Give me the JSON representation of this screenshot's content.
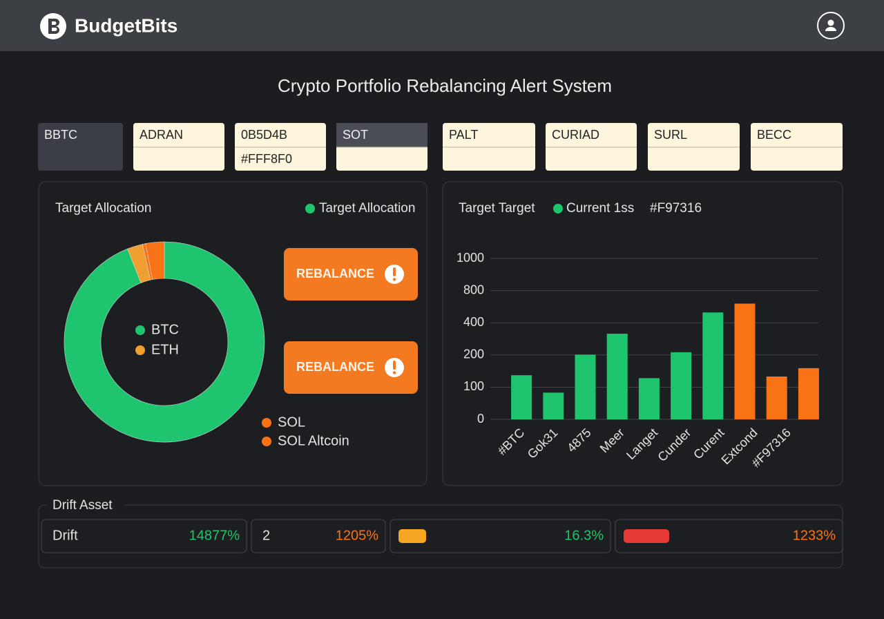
{
  "header": {
    "brand": "BudgetBits"
  },
  "title": "Crypto Portfolio Rebalancing Alert System",
  "cards": [
    {
      "label": "BBTC",
      "style": "dark"
    },
    {
      "label": "ADRAN",
      "style": "cream"
    },
    {
      "label": "0B5D4B",
      "value": "#FFF8F0",
      "style": "cream"
    },
    {
      "label": "SOT",
      "style": "split"
    },
    {
      "label": "PALT",
      "style": "cream"
    },
    {
      "label": "CURIAD",
      "style": "cream"
    },
    {
      "label": "SURL",
      "style": "cream"
    },
    {
      "label": "BECC",
      "style": "cream"
    }
  ],
  "allocation": {
    "title": "Target Allocation",
    "legend_label": "Target Allocation",
    "legend_color": "#1fc46e",
    "buttons": [
      "REBALANCE",
      "REBALANCE"
    ]
  },
  "bar_panel": {
    "legend": [
      "Target Target",
      "Current 1ss",
      "#F97316"
    ],
    "legend_color": "#1fc46e"
  },
  "chart_data": [
    {
      "type": "donut",
      "categories": [
        "BTC",
        "ETH",
        "SOL",
        "SOL Altcoin"
      ],
      "values": [
        94,
        2.5,
        0.5,
        3
      ],
      "colors": [
        "#1fc46e",
        "#f0a030",
        "#f97316",
        "#f97316"
      ]
    },
    {
      "type": "bar",
      "categories": [
        "#BTC",
        "Gok31",
        "4875",
        "Meer",
        "Langet",
        "Cunder",
        "Curent",
        "Extcond",
        "#F97316",
        null
      ],
      "values": [
        137,
        83,
        202,
        332,
        128,
        217,
        528,
        638,
        133,
        159
      ],
      "colors": [
        "#1fc46e",
        "#1fc46e",
        "#1fc46e",
        "#1fc46e",
        "#1fc46e",
        "#1fc46e",
        "#1fc46e",
        "#f97316",
        "#f97316",
        "#f97316"
      ],
      "ylim": [
        0,
        1000
      ],
      "yticks": [
        0,
        100,
        200,
        400,
        800,
        1000
      ],
      "grid": true
    }
  ],
  "drift": {
    "title": "Drift Asset",
    "cells": [
      {
        "label": "Drift",
        "value": "14877%",
        "color": "#22c46a"
      },
      {
        "label": "2",
        "value": "1205%",
        "color": "#f97316"
      },
      {
        "pill": "#f5a623",
        "value": "16.3%",
        "color": "#22c46a"
      },
      {
        "pill": "#e53935",
        "value": "1233%",
        "color": "#f97316"
      }
    ]
  }
}
